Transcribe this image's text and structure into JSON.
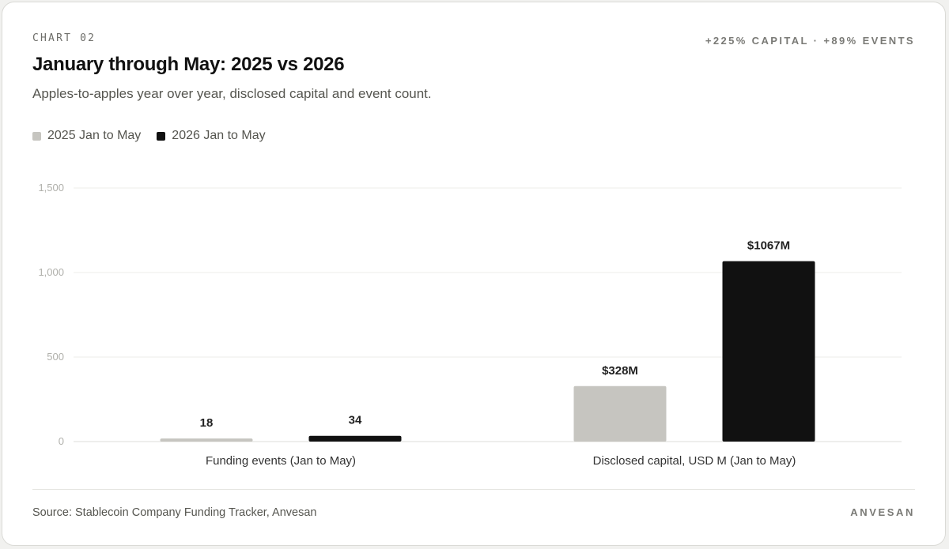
{
  "header": {
    "eyebrow": "CHART 02",
    "summary": "+225% CAPITAL · +89% EVENTS",
    "title": "January through May: 2025 vs 2026",
    "subtitle": "Apples-to-apples year over year, disclosed capital and event count."
  },
  "legend": [
    {
      "label": "2025 Jan to May",
      "color": "#c6c5c0"
    },
    {
      "label": "2026 Jan to May",
      "color": "#111111"
    }
  ],
  "footer": {
    "source": "Source: Stablecoin Company Funding Tracker, Anvesan",
    "brand": "ANVESAN"
  },
  "chart_data": {
    "type": "bar",
    "title": "January through May: 2025 vs 2026",
    "subtitle": "Apples-to-apples year over year, disclosed capital and event count.",
    "categories": [
      "Funding events (Jan to May)",
      "Disclosed capital, USD M (Jan to May)"
    ],
    "series": [
      {
        "name": "2025 Jan to May",
        "color": "#c6c5c0",
        "values": [
          18,
          328
        ],
        "labels": [
          "18",
          "$328M"
        ]
      },
      {
        "name": "2026 Jan to May",
        "color": "#111111",
        "values": [
          34,
          1067
        ],
        "labels": [
          "34",
          "$1067M"
        ]
      }
    ],
    "ylim": [
      0,
      1500
    ],
    "yticks": [
      0,
      500,
      1000,
      1500
    ],
    "ytick_labels": [
      "0",
      "500",
      "1,000",
      "1,500"
    ],
    "grid": true,
    "legend_position": "top-left",
    "xlabel": "",
    "ylabel": ""
  }
}
